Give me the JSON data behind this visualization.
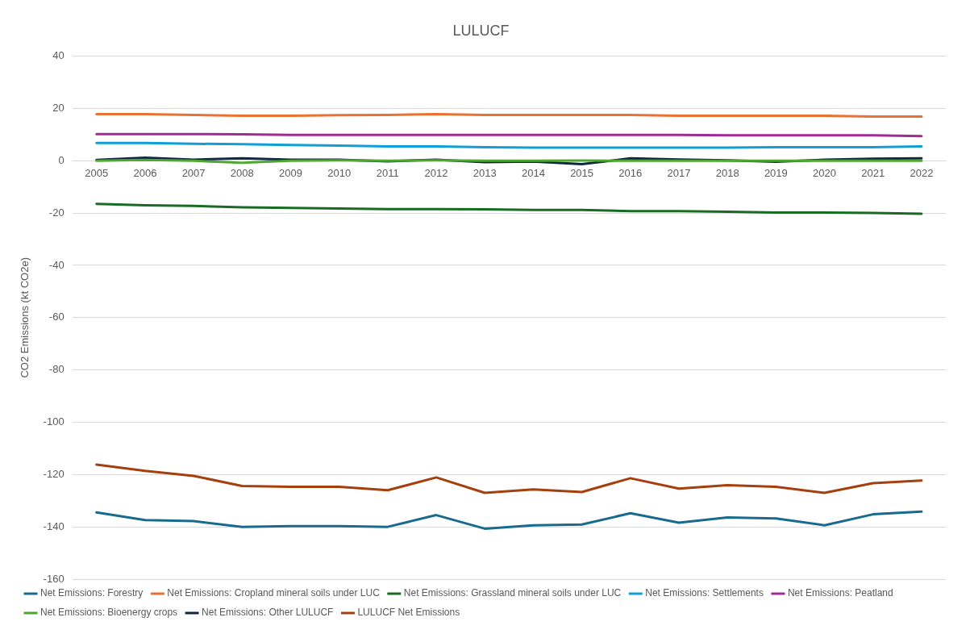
{
  "chart_data": {
    "type": "line",
    "title": "LULUCF",
    "ylabel": "CO2 Emissions (kt CO2e)",
    "categories": [
      "2005",
      "2006",
      "2007",
      "2008",
      "2009",
      "2010",
      "2011",
      "2012",
      "2013",
      "2014",
      "2015",
      "2016",
      "2017",
      "2018",
      "2019",
      "2020",
      "2021",
      "2022"
    ],
    "ylim": [
      -160,
      40
    ],
    "yticks": [
      -160,
      -140,
      -120,
      -100,
      -80,
      -60,
      -40,
      -20,
      0,
      20,
      40
    ],
    "grid": "y",
    "legend": "bottom",
    "marker": "none",
    "line_style": "solid",
    "series": [
      {
        "name": "Net Emissions: Forestry",
        "color": "#196b8e",
        "values": [
          -134.5,
          -137.4,
          -137.8,
          -140,
          -139.7,
          -139.7,
          -140,
          -135.5,
          -140.7,
          -139.4,
          -139.1,
          -134.8,
          -138.4,
          -136.4,
          -136.8,
          -139.4,
          -135.2,
          -134.2
        ]
      },
      {
        "name": "Net Emissions: Cropland mineral soils under LUC",
        "color": "#e97132",
        "values": [
          17.8,
          17.8,
          17.5,
          17.2,
          17.2,
          17.4,
          17.5,
          17.8,
          17.5,
          17.5,
          17.5,
          17.5,
          17.2,
          17.2,
          17.2,
          17.2,
          16.9,
          16.9
        ]
      },
      {
        "name": "Net Emissions: Grassland mineral soils under LUC",
        "color": "#196b24",
        "values": [
          -16.5,
          -17,
          -17.3,
          -17.8,
          -18,
          -18.3,
          -18.5,
          -18.5,
          -18.6,
          -18.8,
          -18.8,
          -19.3,
          -19.3,
          -19.5,
          -19.8,
          -19.8,
          -20,
          -20.3
        ]
      },
      {
        "name": "Net Emissions: Settlements",
        "color": "#0f9ed5",
        "values": [
          6.8,
          6.8,
          6.5,
          6.3,
          6,
          5.8,
          5.5,
          5.5,
          5.2,
          5,
          5,
          5,
          5,
          5,
          5.2,
          5.2,
          5.2,
          5.5
        ]
      },
      {
        "name": "Net Emissions: Peatland",
        "color": "#a02b93",
        "values": [
          10.2,
          10.2,
          10.2,
          10.1,
          9.9,
          9.9,
          9.9,
          9.9,
          9.9,
          9.9,
          9.9,
          9.9,
          9.9,
          9.7,
          9.7,
          9.7,
          9.7,
          9.4
        ]
      },
      {
        "name": "Net Emissions: Bioenergy crops",
        "color": "#4ea72e",
        "values": [
          0,
          0.3,
          0,
          -0.8,
          0,
          0.2,
          0,
          0.2,
          0,
          0,
          0.1,
          0,
          0,
          0,
          0,
          0,
          0,
          0
        ]
      },
      {
        "name": "Net Emissions: Other LULUCF",
        "color": "#0e2841",
        "values": [
          0.3,
          1.2,
          0.4,
          0.9,
          0.4,
          0.4,
          -0.2,
          0.4,
          -0.5,
          -0.3,
          -1.3,
          0.9,
          0.5,
          0.2,
          -0.4,
          0.4,
          0.8,
          0.9
        ]
      },
      {
        "name": "LULUCF Net Emissions",
        "color": "#a5400e",
        "values": [
          -116.2,
          -118.6,
          -120.5,
          -124.4,
          -124.7,
          -124.7,
          -126,
          -121.1,
          -127,
          -125.7,
          -126.7,
          -121.4,
          -125.4,
          -124.1,
          -124.7,
          -127,
          -123.3,
          -122.3
        ]
      }
    ]
  }
}
